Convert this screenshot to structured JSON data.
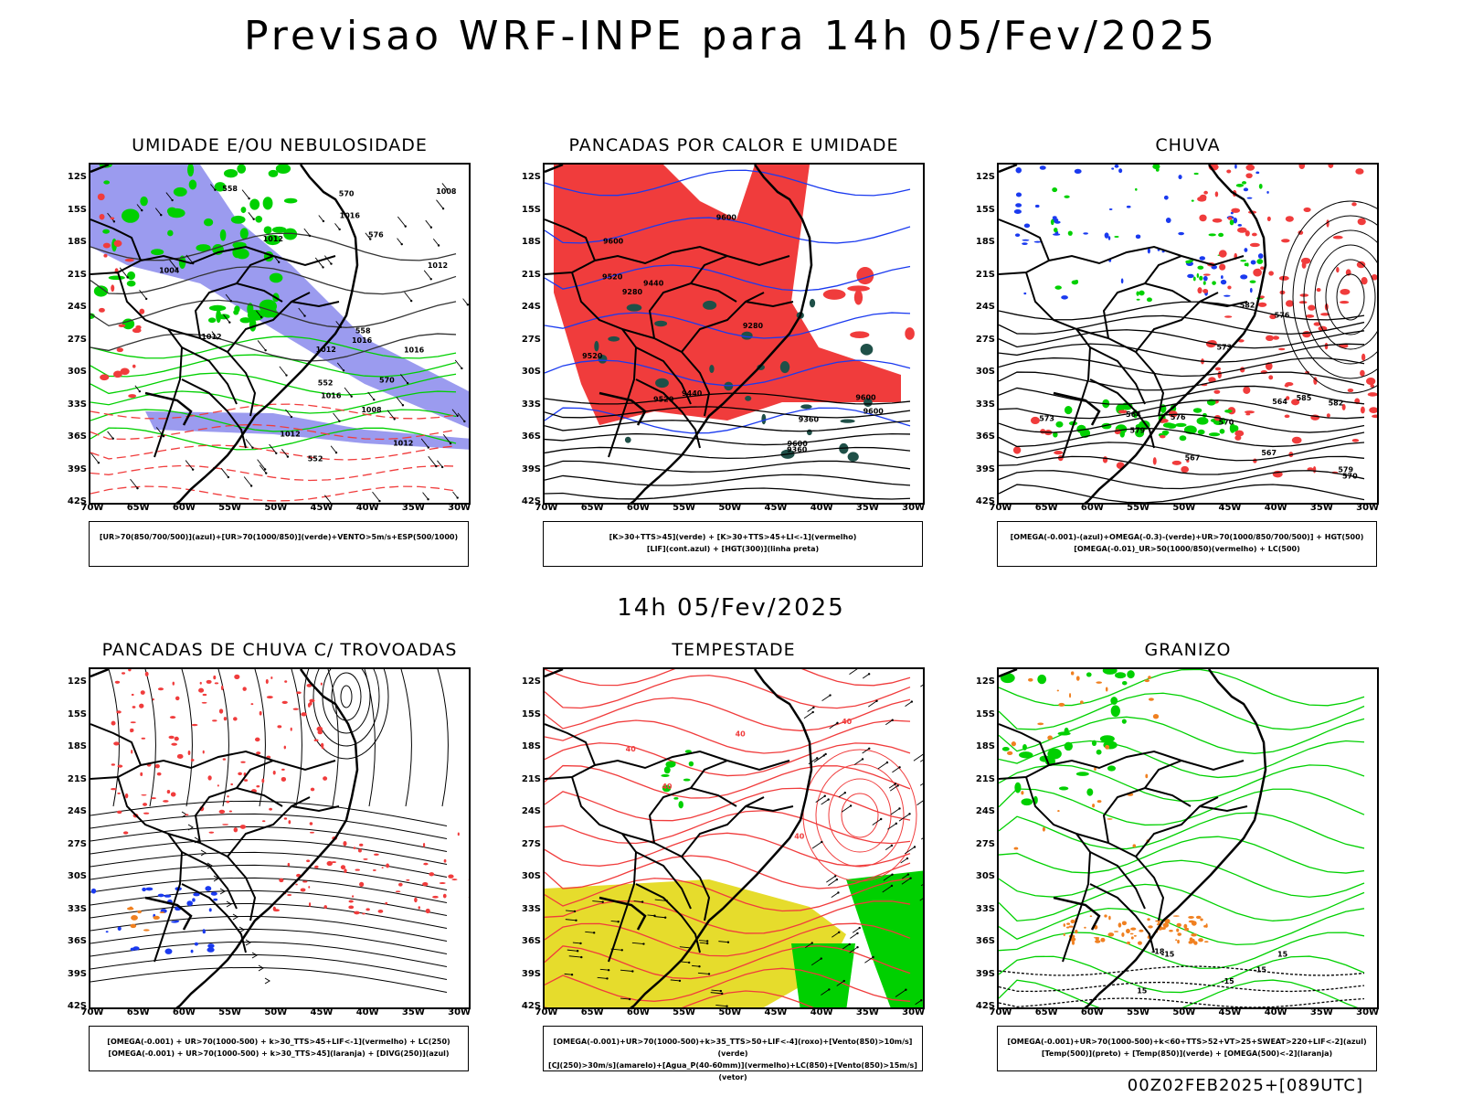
{
  "header": {
    "title": "Previsao WRF-INPE  para 14h 05/Fev/2025"
  },
  "middle": {
    "title": "14h 05/Fev/2025"
  },
  "footer": {
    "run": "00Z02FEB2025+[089UTC]"
  },
  "axes": {
    "lat_labels": [
      "12S",
      "15S",
      "18S",
      "21S",
      "24S",
      "27S",
      "30S",
      "33S",
      "36S",
      "39S",
      "42S"
    ],
    "lon_labels": [
      "70W",
      "65W",
      "60W",
      "55W",
      "50W",
      "45W",
      "40W",
      "35W",
      "30W"
    ]
  },
  "panels": [
    {
      "title": "UMIDADE E/OU NEBULOSIDADE",
      "legend": [
        "[UR>70(850/700/500)](azul)+[UR>70(1000/850)](verde)+VENTO>5m/s+ESP(500/1000)"
      ]
    },
    {
      "title": "PANCADAS POR CALOR E UMIDADE",
      "legend": [
        "[K>30+TTS>45](verde) + [K>30+TTS>45+LI<-1](vermelho)",
        "[LIF](cont.azul) + [HGT(300)](linha preta)"
      ]
    },
    {
      "title": "CHUVA",
      "legend": [
        "[OMEGA(-0.001)-(azul)+OMEGA(-0.3)-(verde)+UR>70(1000/850/700/500)] + HGT(500)",
        "[OMEGA(-0.01)_UR>50(1000/850)(vermelho) + LC(500)"
      ]
    },
    {
      "title": "PANCADAS DE CHUVA C/ TROVOADAS",
      "legend": [
        "[OMEGA(-0.001) + UR>70(1000-500) + k>30_TTS>45+LIF<-1](vermelho) + LC(250)",
        "[OMEGA(-0.001) + UR>70(1000-500) + k>30_TTS>45](laranja) + [DIVG(250)](azul)"
      ]
    },
    {
      "title": "TEMPESTADE",
      "legend": [
        "[OMEGA(-0.001)+UR>70(1000-500)+k>35_TTS>50+LIF<-4](roxo)+[Vento(850)>10m/s](verde)",
        "[CJ(250)>30m/s](amarelo)+[Agua_P(40-60mm)](vermelho)+LC(850)+[Vento(850)>15m/s](vetor)"
      ]
    },
    {
      "title": "GRANIZO",
      "legend": [
        "[OMEGA(-0.001)+UR>70(1000-500)+k<60+TTS>52+VT>25+SWEAT>220+LIF<-2](azul)",
        "[Temp(500)](preto) + [Temp(850)](verde) + [OMEGA(500)<-2](laranja)"
      ]
    }
  ],
  "contour_labels": {
    "p1": [
      "1012",
      "1012",
      "1008",
      "1012",
      "1016",
      "1016",
      "1016",
      "1012",
      "1008",
      "1004",
      "1012",
      "1016",
      "1012",
      "576",
      "570",
      "552",
      "558",
      "558",
      "552",
      "570"
    ],
    "p2": [
      "9600",
      "9600",
      "9600",
      "9520",
      "9600",
      "9600",
      "9520",
      "9520",
      "9440",
      "9440",
      "9360",
      "9360",
      "9280",
      "9280"
    ],
    "p3": [
      "585",
      "582",
      "579",
      "576",
      "573",
      "570",
      "567",
      "564",
      "582",
      "579",
      "576",
      "573",
      "570",
      "567",
      "564"
    ],
    "p5": [
      "40",
      "40",
      "40",
      "40",
      "40"
    ],
    "p6": [
      "-15",
      "-15",
      "-15",
      "-18",
      "15",
      "15"
    ]
  },
  "colors": {
    "blue": "#9b9bef",
    "green": "#00d000",
    "red": "#f03c3c",
    "orange": "#f08020",
    "yellow": "#e6dc2c",
    "navy": "#1a3aef",
    "teal": "#1f5048"
  }
}
